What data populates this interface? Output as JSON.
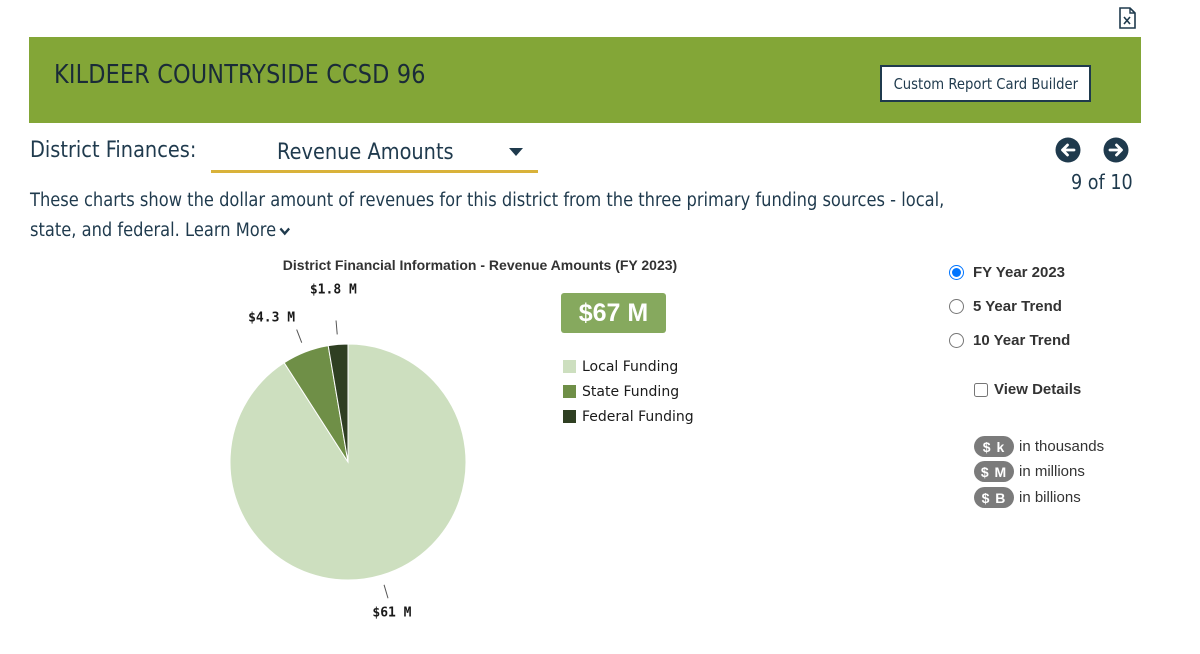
{
  "header": {
    "district_name": "KILDEER COUNTRYSIDE CCSD 96",
    "builder_button": "Custom Report Card Builder",
    "export_icon": "excel-export-icon"
  },
  "section": {
    "label": "District Finances:",
    "selected": "Revenue Amounts"
  },
  "pager": {
    "text": "9 of 10",
    "prev_icon": "arrow-left-circle-icon",
    "next_icon": "arrow-right-circle-icon"
  },
  "description": {
    "text": "These charts show the dollar amount of revenues for this district from the three primary funding sources - local, state, and federal.",
    "learn_more": "Learn More"
  },
  "chart": {
    "total": "$67 M"
  },
  "chart_data": {
    "type": "pie",
    "title": "District Financial Information - Revenue Amounts (FY 2023)",
    "categories": [
      "Local Funding",
      "State Funding",
      "Federal Funding"
    ],
    "values": [
      61,
      4.3,
      1.8
    ],
    "data_labels": [
      "$61 M",
      "$4.3 M",
      "$1.8 M"
    ],
    "colors": [
      "#cddfbf",
      "#6f8f47",
      "#2f3f22"
    ],
    "legend_position": "right"
  },
  "options": {
    "radios": [
      {
        "label": "FY Year 2023",
        "checked": true
      },
      {
        "label": "5 Year Trend",
        "checked": false
      },
      {
        "label": "10 Year Trend",
        "checked": false
      }
    ],
    "view_details": "View Details",
    "units": [
      {
        "badge": "$ k",
        "text": "in thousands"
      },
      {
        "badge": "$ M",
        "text": "in millions"
      },
      {
        "badge": "$ B",
        "text": "in billions"
      }
    ]
  }
}
